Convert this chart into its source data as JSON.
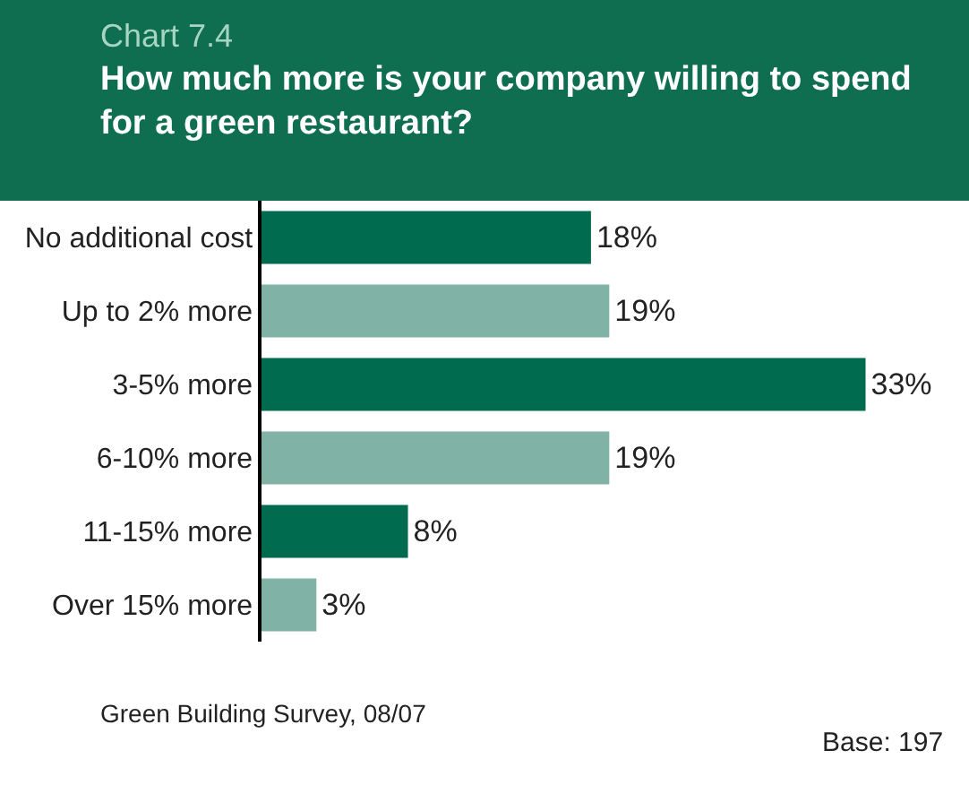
{
  "chart_data": {
    "type": "bar",
    "orientation": "horizontal",
    "subtitle": "Chart 7.4",
    "title": "How much more is your company willing to spend\nfor a green restaurant?",
    "categories": [
      "No additional cost",
      "Up to 2% more",
      "3-5% more",
      "6-10% more",
      "11-15% more",
      "Over 15% more"
    ],
    "values": [
      18,
      19,
      33,
      19,
      8,
      3
    ],
    "colors": [
      "#006b4e",
      "#80b3a6",
      "#006b4e",
      "#80b3a6",
      "#006b4e",
      "#80b3a6"
    ],
    "value_labels": [
      "18%",
      "19%",
      "33%",
      "19%",
      "8%",
      "3%"
    ],
    "annotations": [
      "Green Building Survey, 08/07",
      "Base: 197"
    ],
    "legend": false
  }
}
